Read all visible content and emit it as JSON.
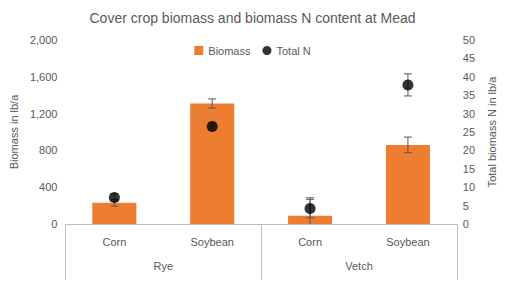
{
  "chart_data": {
    "type": "bar",
    "title": "Cover crop biomass and biomass N content at Mead",
    "categories": [
      "Corn",
      "Soybean",
      "Corn",
      "Soybean"
    ],
    "category_groups": [
      "Rye",
      "Rye",
      "Vetch",
      "Vetch"
    ],
    "ylabel": "Biomass in lb/a",
    "y2label": "Total biomass N in lb/a",
    "series": [
      {
        "name": "Biomass",
        "type": "bar",
        "color": "#ED7D31",
        "values": [
          230,
          1310,
          90,
          860
        ],
        "errors": [
          35,
          50,
          195,
          85
        ]
      },
      {
        "name": "Total N",
        "type": "scatter",
        "axis": "y2",
        "color": "#000000",
        "marker": "circle",
        "values": [
          7.2,
          26.5,
          4.2,
          37.8
        ],
        "errors": [
          1,
          1,
          2.5,
          3
        ]
      }
    ],
    "ylim": [
      0,
      2000
    ],
    "yticks": [
      0,
      400,
      800,
      1200,
      1600,
      2000
    ],
    "y2lim": [
      0,
      50
    ],
    "y2ticks": [
      0,
      5,
      10,
      15,
      20,
      25,
      30,
      35,
      40,
      45,
      50
    ],
    "grid": false,
    "legend": "top"
  }
}
